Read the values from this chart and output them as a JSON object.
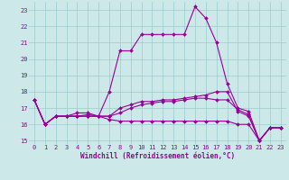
{
  "xlabel": "Windchill (Refroidissement éolien,°C)",
  "bg_color": "#cce8e8",
  "line_color": "#990099",
  "grid_color": "#99cccc",
  "xlim": [
    -0.5,
    23.5
  ],
  "ylim": [
    14.8,
    23.5
  ],
  "xticks": [
    0,
    1,
    2,
    3,
    4,
    5,
    6,
    7,
    8,
    9,
    10,
    11,
    12,
    13,
    14,
    15,
    16,
    17,
    18,
    19,
    20,
    21,
    22,
    23
  ],
  "yticks": [
    15,
    16,
    17,
    18,
    19,
    20,
    21,
    22,
    23
  ],
  "series": [
    [
      17.5,
      16.0,
      16.5,
      16.5,
      16.7,
      16.7,
      16.5,
      18.0,
      20.5,
      20.5,
      21.5,
      21.5,
      21.5,
      21.5,
      21.5,
      23.2,
      22.5,
      21.0,
      18.5,
      17.0,
      16.8,
      15.0,
      15.8,
      15.8
    ],
    [
      17.5,
      16.0,
      16.5,
      16.5,
      16.5,
      16.5,
      16.5,
      16.5,
      17.0,
      17.2,
      17.4,
      17.4,
      17.5,
      17.5,
      17.6,
      17.7,
      17.8,
      18.0,
      18.0,
      16.8,
      16.5,
      15.0,
      15.8,
      15.8
    ],
    [
      17.5,
      16.0,
      16.5,
      16.5,
      16.5,
      16.5,
      16.5,
      16.3,
      16.2,
      16.2,
      16.2,
      16.2,
      16.2,
      16.2,
      16.2,
      16.2,
      16.2,
      16.2,
      16.2,
      16.0,
      16.0,
      15.0,
      15.8,
      15.8
    ],
    [
      17.5,
      16.0,
      16.5,
      16.5,
      16.5,
      16.6,
      16.5,
      16.5,
      16.7,
      17.0,
      17.2,
      17.3,
      17.4,
      17.4,
      17.5,
      17.6,
      17.6,
      17.5,
      17.5,
      16.9,
      16.6,
      15.0,
      15.8,
      15.8
    ]
  ],
  "xlabel_fontsize": 5.5,
  "tick_fontsize": 5.0,
  "marker_size": 2.0,
  "line_width": 0.8
}
